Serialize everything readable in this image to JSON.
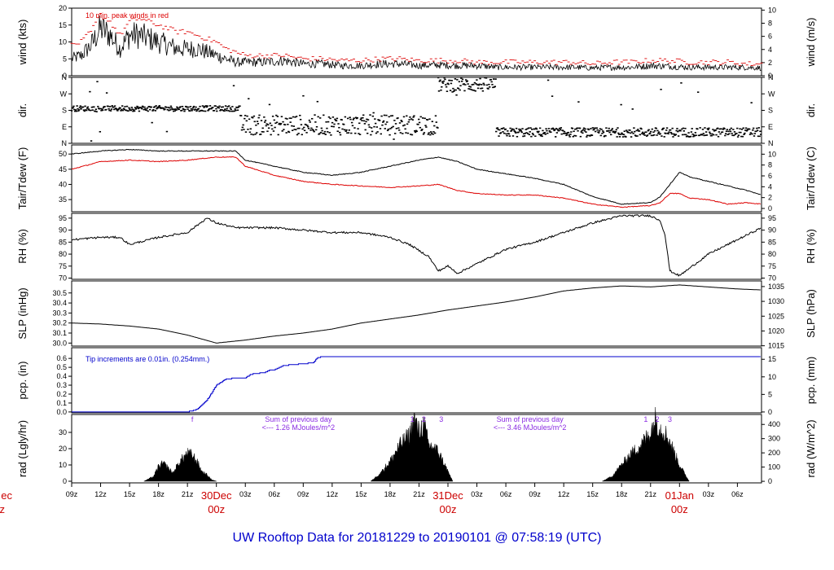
{
  "title": "UW Rooftop Data for 20181229  to  20190101 @ 07:58:19  (UTC)",
  "colors": {
    "black": "#000000",
    "red": "#dd0000",
    "blue": "#0000cc",
    "purple": "#8a2be2",
    "date": "#cc0000"
  },
  "x_axis": {
    "hours_range": [
      0,
      71.5
    ],
    "ticks": [
      {
        "label": "09z",
        "h": 0
      },
      {
        "label": "12z",
        "h": 3
      },
      {
        "label": "15z",
        "h": 6
      },
      {
        "label": "18z",
        "h": 9
      },
      {
        "label": "21z",
        "h": 12
      },
      {
        "label": "03z",
        "h": 18
      },
      {
        "label": "06z",
        "h": 21
      },
      {
        "label": "09z",
        "h": 24
      },
      {
        "label": "12z",
        "h": 27
      },
      {
        "label": "15z",
        "h": 30
      },
      {
        "label": "18z",
        "h": 33
      },
      {
        "label": "21z",
        "h": 36
      },
      {
        "label": "03z",
        "h": 42
      },
      {
        "label": "06z",
        "h": 45
      },
      {
        "label": "09z",
        "h": 48
      },
      {
        "label": "12z",
        "h": 51
      },
      {
        "label": "15z",
        "h": 54
      },
      {
        "label": "18z",
        "h": 57
      },
      {
        "label": "21z",
        "h": 60
      },
      {
        "label": "03z",
        "h": 66
      },
      {
        "label": "06z",
        "h": 69
      }
    ],
    "dates": [
      {
        "date": "30Dec",
        "zz": "00z",
        "h": 15
      },
      {
        "date": "31Dec",
        "zz": "00z",
        "h": 39
      },
      {
        "date": "01Jan",
        "zz": "00z",
        "h": 63
      }
    ],
    "cut_date": "ec",
    "cut_zz": "z"
  },
  "chart_data": [
    {
      "type": "line",
      "name": "wind",
      "ylabel": "wind (kts)",
      "ylabel_right": "wind (m/s)",
      "ylim": [
        0,
        20
      ],
      "yticks": [
        0,
        5,
        10,
        15,
        20
      ],
      "ylim_right": [
        0,
        10.3
      ],
      "yticks_right": [
        0,
        2,
        4,
        6,
        8,
        10
      ],
      "annotation": "10 min. peak winds in red",
      "series": [
        {
          "name": "wind speed",
          "color": "#000000",
          "x": [
            0,
            1,
            2,
            3,
            4,
            5,
            6,
            7,
            8,
            9,
            10,
            11,
            12,
            13,
            14,
            15,
            16,
            17,
            18,
            20,
            22,
            24,
            26,
            28,
            30,
            32,
            34,
            36,
            38,
            40,
            42,
            44,
            46,
            48,
            50,
            52,
            54,
            56,
            58,
            60,
            62,
            64,
            66,
            68,
            70,
            71.5
          ],
          "y": [
            5,
            6,
            9,
            14,
            12,
            8,
            12,
            12,
            11,
            10,
            9,
            8,
            8,
            8,
            7,
            6,
            5,
            4,
            4,
            4,
            4.5,
            3.5,
            3.5,
            3,
            3,
            3.5,
            3.5,
            3,
            3.2,
            3,
            3,
            2.5,
            2.5,
            2.5,
            2.5,
            2.5,
            2.3,
            2.5,
            2.5,
            3,
            2.8,
            2.5,
            2.5,
            2.5,
            2.5,
            2.3
          ]
        },
        {
          "name": "10 min peak",
          "color": "#dd0000",
          "x": [
            0,
            1,
            2,
            3,
            4,
            5,
            6,
            7,
            8,
            9,
            10,
            11,
            12,
            13,
            14,
            15,
            16,
            17,
            18,
            20,
            22,
            24,
            26,
            28,
            30,
            32,
            34,
            36,
            38,
            40,
            42,
            44,
            46,
            48,
            50,
            52,
            54,
            56,
            58,
            60,
            62,
            64,
            66,
            68,
            70,
            71.5
          ],
          "y": [
            9,
            10,
            13,
            18,
            16,
            12,
            16,
            17,
            16,
            15,
            14,
            13,
            13,
            12,
            11,
            10,
            8,
            7,
            6,
            6,
            6,
            5,
            5,
            4.5,
            4.5,
            5,
            5,
            4.5,
            4.5,
            4.5,
            4,
            4,
            4,
            4,
            4,
            4,
            3.5,
            4,
            4,
            4.5,
            4.5,
            4,
            4,
            4,
            3.5,
            3.5
          ]
        }
      ]
    },
    {
      "type": "scatter",
      "name": "direction",
      "ylabel": "dir.",
      "ylabel_right": "dir.",
      "ylim": [
        0,
        360
      ],
      "ytick_labels": [
        "N",
        "E",
        "S",
        "W",
        "N"
      ],
      "ytick_values": [
        0,
        90,
        180,
        270,
        360
      ],
      "segments": [
        {
          "x": [
            0,
            17.5
          ],
          "center": 190,
          "spread": 15
        },
        {
          "x": [
            17.5,
            38
          ],
          "center": 100,
          "spread": 55
        },
        {
          "x": [
            38,
            44
          ],
          "center": 320,
          "spread": 40
        },
        {
          "x": [
            44,
            71.5
          ],
          "center": 60,
          "spread": 25
        }
      ]
    },
    {
      "type": "line",
      "name": "temperature",
      "ylabel": "Tair/Tdew (F)",
      "ylabel_right": "Tair/Tdew (C)",
      "ylim": [
        31,
        53
      ],
      "yticks": [
        35,
        40,
        45,
        50
      ],
      "ylim_right": [
        -0.6,
        11.7
      ],
      "yticks_right": [
        0,
        2,
        4,
        6,
        8,
        10
      ],
      "series": [
        {
          "name": "Tair",
          "color": "#000000",
          "x": [
            0,
            3,
            6,
            9,
            12,
            15,
            17,
            18,
            21,
            24,
            27,
            30,
            33,
            36,
            38,
            40,
            42,
            45,
            48,
            51,
            54,
            57,
            60,
            61,
            62,
            63,
            64,
            66,
            68,
            70,
            71.5
          ],
          "y": [
            50,
            51,
            51.5,
            51,
            51,
            51,
            51,
            48,
            46,
            44,
            43,
            44,
            46,
            48,
            49,
            47.5,
            45,
            43.5,
            42,
            40,
            36,
            33.5,
            34,
            36,
            40,
            44,
            42.5,
            41,
            39.5,
            38,
            36.5
          ]
        },
        {
          "name": "Tdew",
          "color": "#dd0000",
          "x": [
            0,
            3,
            6,
            9,
            12,
            15,
            17,
            18,
            21,
            24,
            27,
            30,
            33,
            36,
            38,
            40,
            42,
            45,
            48,
            51,
            54,
            57,
            60,
            61,
            62,
            63,
            64,
            66,
            68,
            70,
            71.5
          ],
          "y": [
            45,
            47.5,
            48,
            47.5,
            48,
            49,
            49,
            46,
            43,
            41,
            40,
            39.5,
            39,
            39.5,
            40,
            38,
            37,
            36.5,
            36.5,
            35.5,
            33.5,
            32.5,
            33,
            34,
            37,
            37,
            35.5,
            35,
            33.5,
            34,
            33.5
          ]
        }
      ]
    },
    {
      "type": "line",
      "name": "humidity",
      "ylabel": "RH (%)",
      "ylabel_right": "RH (%)",
      "ylim": [
        69.5,
        97
      ],
      "yticks": [
        70,
        75,
        80,
        85,
        90,
        95
      ],
      "series": [
        {
          "name": "RH",
          "color": "#000000",
          "x": [
            0,
            3,
            5,
            6,
            9,
            12,
            14,
            15,
            17,
            21,
            24,
            27,
            30,
            33,
            35,
            37,
            38,
            39,
            40,
            42,
            45,
            48,
            51,
            54,
            57,
            60,
            61,
            61.5,
            62,
            63,
            64,
            66,
            68,
            70,
            71.5
          ],
          "y": [
            86,
            87,
            87,
            84,
            87,
            89,
            95,
            93,
            91,
            91,
            90,
            89,
            89,
            87,
            84,
            79,
            73,
            75,
            72,
            76,
            82,
            85,
            89,
            93,
            96,
            96,
            94,
            88,
            73,
            71,
            74,
            80,
            84,
            88,
            91
          ]
        }
      ]
    },
    {
      "type": "line",
      "name": "pressure",
      "ylabel": "SLP (inHg)",
      "ylabel_right": "SLP (hPa)",
      "ylim": [
        29.97,
        30.62
      ],
      "yticks": [
        30.0,
        30.1,
        30.2,
        30.3,
        30.4,
        30.5
      ],
      "ytick_labels": [
        "30.0",
        "30.1",
        "30.2",
        "30.3",
        "30.4",
        "30.5"
      ],
      "ylim_right": [
        1014.9,
        1036.9
      ],
      "yticks_right": [
        1015,
        1020,
        1025,
        1030,
        1035
      ],
      "series": [
        {
          "name": "SLP",
          "color": "#000000",
          "x": [
            0,
            3,
            6,
            9,
            12,
            15,
            18,
            21,
            24,
            27,
            30,
            33,
            36,
            39,
            42,
            45,
            48,
            51,
            54,
            57,
            60,
            63,
            66,
            69,
            71.5
          ],
          "y": [
            30.2,
            30.19,
            30.17,
            30.14,
            30.08,
            30.0,
            30.03,
            30.07,
            30.1,
            30.14,
            30.2,
            30.24,
            30.28,
            30.33,
            30.37,
            30.41,
            30.46,
            30.52,
            30.55,
            30.57,
            30.56,
            30.58,
            30.56,
            30.54,
            30.53
          ]
        }
      ]
    },
    {
      "type": "line",
      "name": "precipitation",
      "ylabel": "pcp. (in)",
      "ylabel_right": "pcp. (mm)",
      "ylim": [
        -0.01,
        0.72
      ],
      "yticks": [
        0.0,
        0.1,
        0.2,
        0.3,
        0.4,
        0.5,
        0.6
      ],
      "ytick_labels": [
        "0.0",
        "0.1",
        "0.2",
        "0.3",
        "0.4",
        "0.5",
        "0.6"
      ],
      "ylim_right": [
        -0.25,
        18.3
      ],
      "yticks_right": [
        0,
        5,
        10,
        15
      ],
      "annotation": "Tip increments are 0.01in. (0.254mm.)",
      "series": [
        {
          "name": "precipitation",
          "color": "#0000cc",
          "x": [
            0,
            12,
            13,
            14,
            15,
            16,
            17,
            18,
            18.5,
            19,
            20,
            20.5,
            21,
            22,
            23,
            24,
            25,
            25.5,
            26,
            71.5
          ],
          "y": [
            0,
            0,
            0.03,
            0.13,
            0.3,
            0.37,
            0.38,
            0.38,
            0.42,
            0.43,
            0.44,
            0.47,
            0.47,
            0.52,
            0.53,
            0.54,
            0.55,
            0.61,
            0.62,
            0.62
          ]
        }
      ]
    },
    {
      "type": "area",
      "name": "radiation",
      "ylabel": "rad (Lgly/hr)",
      "ylabel_right": "rad (W/m^2)",
      "ylim": [
        -1,
        41
      ],
      "yticks": [
        0,
        10,
        20,
        30
      ],
      "ylim_right": [
        -11,
        470
      ],
      "yticks_right": [
        0,
        100,
        200,
        300,
        400
      ],
      "series": [
        {
          "name": "day 1",
          "color": "#000000",
          "x": [
            7.5,
            8.5,
            9,
            9.5,
            10,
            10.5,
            11,
            11.5,
            12,
            12.5,
            13,
            13.5,
            14,
            14.5,
            15
          ],
          "y": [
            0,
            3,
            9,
            11,
            8,
            5,
            10,
            14,
            17,
            16,
            12,
            6,
            4,
            1,
            0
          ]
        },
        {
          "name": "day 2",
          "color": "#000000",
          "x": [
            31,
            32,
            33,
            34,
            35,
            35.5,
            36,
            36.5,
            37,
            37.5,
            38,
            38.5,
            39,
            39.5
          ],
          "y": [
            0,
            5,
            12,
            22,
            28,
            38,
            30,
            35,
            22,
            21,
            18,
            12,
            6,
            0
          ]
        },
        {
          "name": "day 3",
          "color": "#000000",
          "x": [
            55,
            56,
            57,
            58,
            59,
            60,
            60.5,
            61,
            61.5,
            62,
            63,
            64
          ],
          "y": [
            0,
            3,
            10,
            17,
            22,
            30,
            38,
            32,
            30,
            24,
            10,
            0
          ]
        }
      ],
      "annotations": [
        {
          "text": "f",
          "h": 12.5
        },
        {
          "text": "1",
          "h": 35.3
        },
        {
          "text": "2",
          "h": 36.5
        },
        {
          "text": "3",
          "h": 38.3
        },
        {
          "text": "1",
          "h": 59.5
        },
        {
          "text": "2",
          "h": 60.7
        },
        {
          "text": "3",
          "h": 62
        }
      ],
      "day_sums": [
        {
          "line1": "Sum of previous day",
          "line2": "<--- 1.26 MJoules/m^2",
          "h": 23.5
        },
        {
          "line1": "Sum of previous day",
          "line2": "<--- 3.46 MJoules/m^2",
          "h": 47.5
        }
      ]
    }
  ]
}
